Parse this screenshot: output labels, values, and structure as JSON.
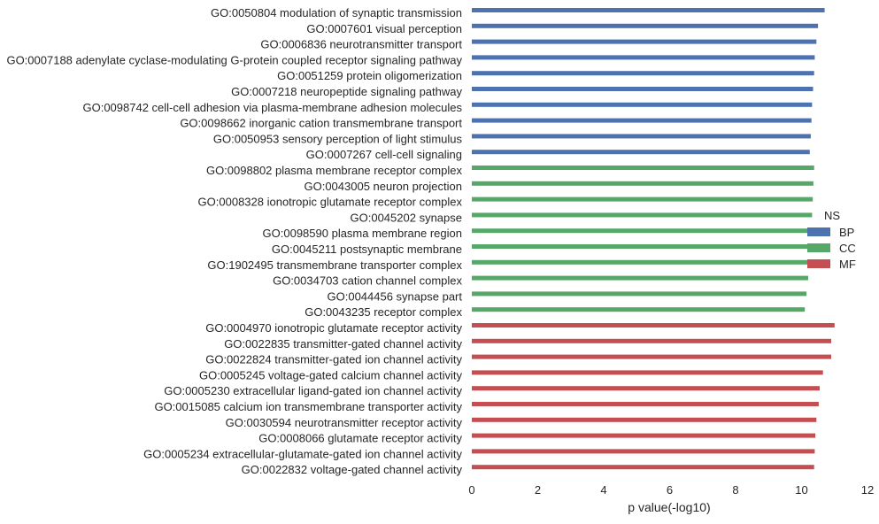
{
  "chart_data": {
    "type": "bar",
    "orientation": "horizontal",
    "xlabel": "p value(-log10)",
    "ylabel": "",
    "xlim": [
      0,
      12
    ],
    "xticks": [
      0,
      2,
      4,
      6,
      8,
      10,
      12
    ],
    "grid": false,
    "legend": {
      "title": "NS",
      "placement": "right",
      "entries": [
        {
          "name": "BP",
          "color": "#4c72b0"
        },
        {
          "name": "CC",
          "color": "#55a868"
        },
        {
          "name": "MF",
          "color": "#c44e52"
        }
      ]
    },
    "categories": [
      {
        "label": "GO:0050804 modulation of synaptic transmission",
        "value": 10.7,
        "group": "BP"
      },
      {
        "label": "GO:0007601 visual perception",
        "value": 10.5,
        "group": "BP"
      },
      {
        "label": "GO:0006836 neurotransmitter transport",
        "value": 10.45,
        "group": "BP"
      },
      {
        "label": "GO:0007188 adenylate cyclase-modulating G-protein coupled receptor signaling pathway",
        "value": 10.4,
        "group": "BP"
      },
      {
        "label": "GO:0051259 protein oligomerization",
        "value": 10.38,
        "group": "BP"
      },
      {
        "label": "GO:0007218 neuropeptide signaling pathway",
        "value": 10.35,
        "group": "BP"
      },
      {
        "label": "GO:0098742 cell-cell adhesion via plasma-membrane adhesion molecules",
        "value": 10.32,
        "group": "BP"
      },
      {
        "label": "GO:0098662 inorganic cation transmembrane transport",
        "value": 10.3,
        "group": "BP"
      },
      {
        "label": "GO:0050953 sensory perception of light stimulus",
        "value": 10.28,
        "group": "BP"
      },
      {
        "label": "GO:0007267 cell-cell signaling",
        "value": 10.25,
        "group": "BP"
      },
      {
        "label": "GO:0098802 plasma membrane receptor complex",
        "value": 10.38,
        "group": "CC"
      },
      {
        "label": "GO:0043005 neuron projection",
        "value": 10.36,
        "group": "CC"
      },
      {
        "label": "GO:0008328 ionotropic glutamate receptor complex",
        "value": 10.34,
        "group": "CC"
      },
      {
        "label": "GO:0045202 synapse",
        "value": 10.32,
        "group": "CC"
      },
      {
        "label": "GO:0098590 plasma membrane region",
        "value": 10.3,
        "group": "CC"
      },
      {
        "label": "GO:0045211 postsynaptic membrane",
        "value": 10.28,
        "group": "CC"
      },
      {
        "label": "GO:1902495 transmembrane transporter complex",
        "value": 10.26,
        "group": "CC"
      },
      {
        "label": "GO:0034703 cation channel complex",
        "value": 10.2,
        "group": "CC"
      },
      {
        "label": "GO:0044456 synapse part",
        "value": 10.15,
        "group": "CC"
      },
      {
        "label": "GO:0043235 receptor complex",
        "value": 10.1,
        "group": "CC"
      },
      {
        "label": "GO:0004970 ionotropic glutamate receptor activity",
        "value": 11.0,
        "group": "MF"
      },
      {
        "label": "GO:0022835 transmitter-gated channel activity",
        "value": 10.9,
        "group": "MF"
      },
      {
        "label": "GO:0022824 transmitter-gated ion channel activity",
        "value": 10.9,
        "group": "MF"
      },
      {
        "label": "GO:0005245 voltage-gated calcium channel activity",
        "value": 10.65,
        "group": "MF"
      },
      {
        "label": "GO:0005230 extracellular ligand-gated ion channel activity",
        "value": 10.55,
        "group": "MF"
      },
      {
        "label": "GO:0015085 calcium ion transmembrane transporter activity",
        "value": 10.52,
        "group": "MF"
      },
      {
        "label": "GO:0030594 neurotransmitter receptor activity",
        "value": 10.45,
        "group": "MF"
      },
      {
        "label": "GO:0008066 glutamate receptor activity",
        "value": 10.42,
        "group": "MF"
      },
      {
        "label": "GO:0005234 extracellular-glutamate-gated ion channel activity",
        "value": 10.4,
        "group": "MF"
      },
      {
        "label": "GO:0022832 voltage-gated channel activity",
        "value": 10.38,
        "group": "MF"
      }
    ]
  }
}
